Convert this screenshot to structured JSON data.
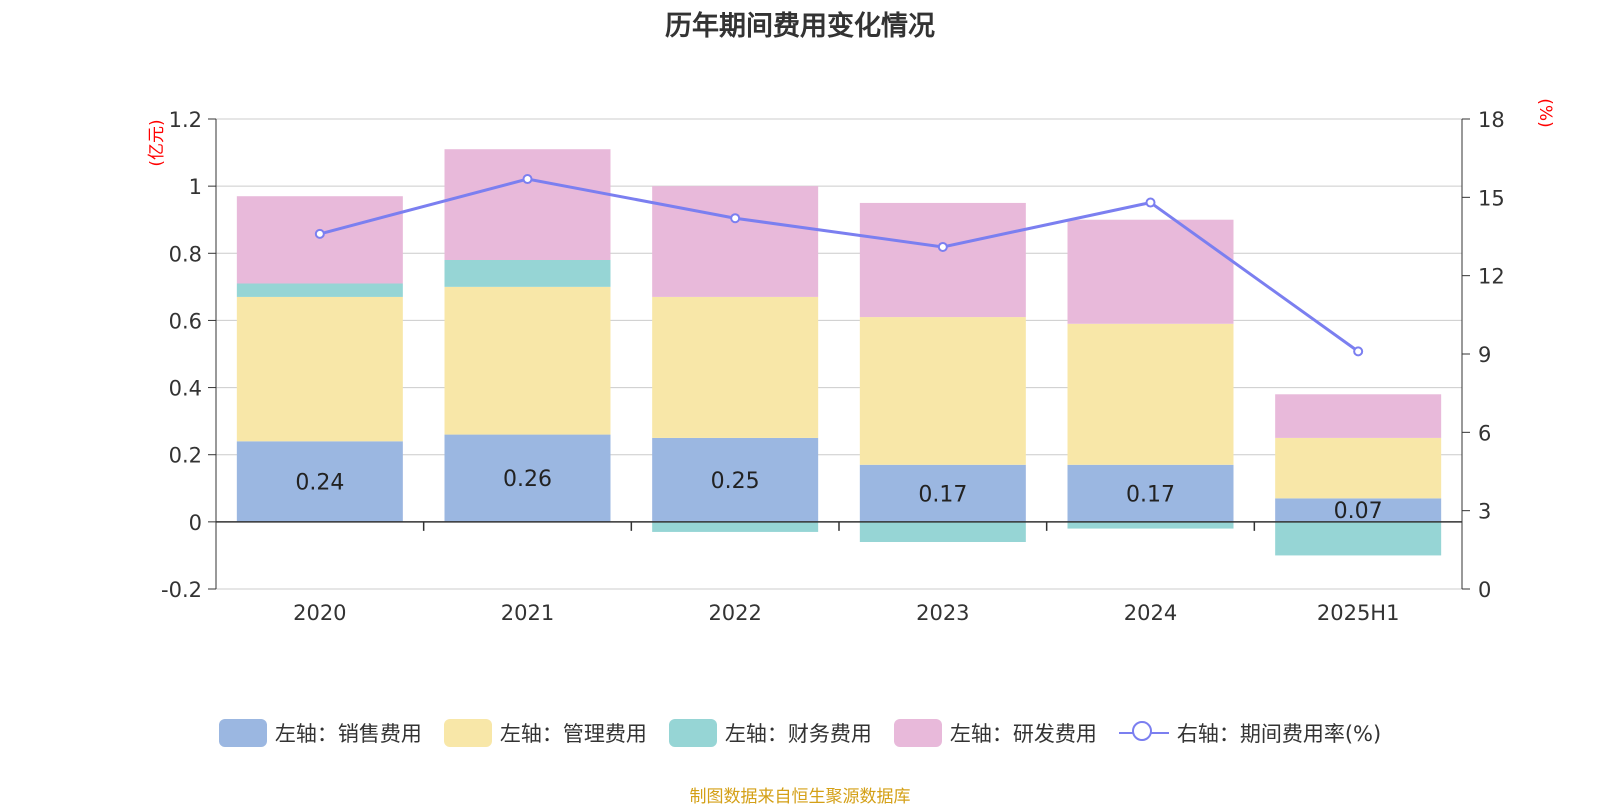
{
  "chart_data": {
    "type": "bar",
    "title": "历年期间费用变化情况",
    "categories": [
      "2020",
      "2021",
      "2022",
      "2023",
      "2024",
      "2025H1"
    ],
    "stacked": true,
    "series": [
      {
        "name": "左轴：销售费用",
        "axis": "left",
        "color": "#9bb7e1",
        "values": [
          0.24,
          0.26,
          0.25,
          0.17,
          0.17,
          0.07
        ],
        "labels": [
          "0.24",
          "0.26",
          "0.25",
          "0.17",
          "0.17",
          "0.07"
        ]
      },
      {
        "name": "左轴：管理费用",
        "axis": "left",
        "color": "#f8e7a8",
        "values": [
          0.43,
          0.44,
          0.42,
          0.44,
          0.42,
          0.18
        ]
      },
      {
        "name": "左轴：财务费用",
        "axis": "left",
        "color": "#96d5d5",
        "values": [
          0.04,
          0.08,
          -0.03,
          -0.06,
          -0.02,
          -0.1
        ]
      },
      {
        "name": "左轴：研发费用",
        "axis": "left",
        "color": "#e8b9da",
        "values": [
          0.26,
          0.33,
          0.33,
          0.34,
          0.31,
          0.13
        ]
      }
    ],
    "line_series": {
      "name": "右轴：期间费用率(%)",
      "axis": "right",
      "color": "#7b7ff0",
      "values": [
        13.6,
        15.7,
        14.2,
        13.1,
        14.8,
        9.1
      ]
    },
    "left_axis": {
      "unit": "(亿元)",
      "ylim": [
        -0.2,
        1.2
      ],
      "ticks": [
        "-0.2",
        "0",
        "0.2",
        "0.4",
        "0.6",
        "0.8",
        "1",
        "1.2"
      ]
    },
    "right_axis": {
      "unit": "(%)",
      "ylim": [
        0,
        18
      ],
      "ticks": [
        "0",
        "3",
        "6",
        "9",
        "12",
        "15",
        "18"
      ]
    },
    "grid": true,
    "legend_position": "bottom"
  },
  "legend": [
    {
      "label": "左轴：销售费用",
      "color": "#9bb7e1",
      "kind": "box"
    },
    {
      "label": "左轴：管理费用",
      "color": "#f8e7a8",
      "kind": "box"
    },
    {
      "label": "左轴：财务费用",
      "color": "#96d5d5",
      "kind": "box"
    },
    {
      "label": "左轴：研发费用",
      "color": "#e8b9da",
      "kind": "box"
    },
    {
      "label": "右轴：期间费用率(%)",
      "color": "#7b7ff0",
      "kind": "line"
    }
  ],
  "source": "制图数据来自恒生聚源数据库"
}
